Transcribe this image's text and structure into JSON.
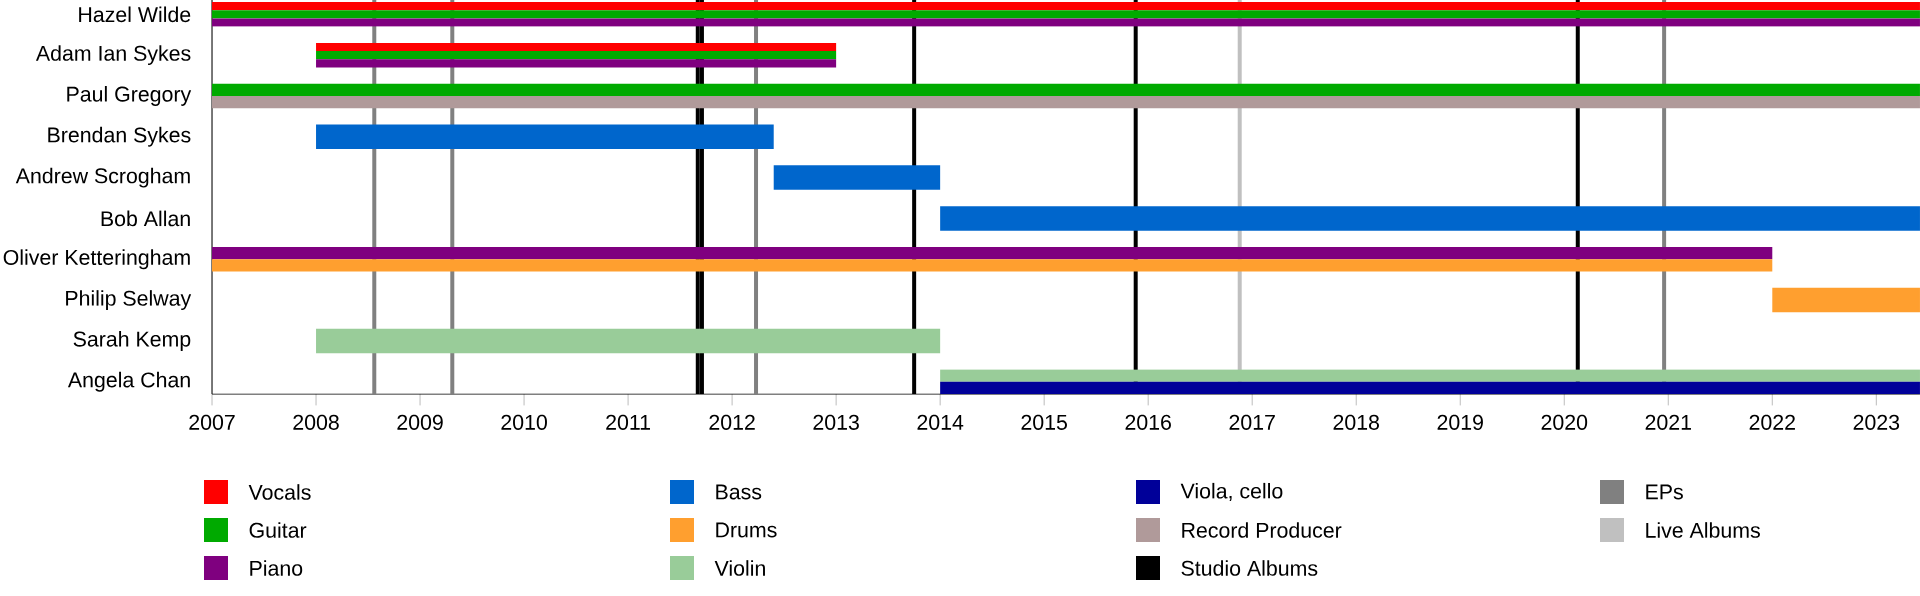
{
  "chart_data": {
    "type": "bar",
    "orientation": "horizontal",
    "categories": [
      "Hazel Wilde",
      "Adam Ian Sykes",
      "Paul Gregory",
      "Brendan Sykes",
      "Andrew Scrogham",
      "Bob Allan",
      "Oliver Ketteringham",
      "Philip Selway",
      "Sarah Kemp",
      "Angela Chan"
    ],
    "series": [
      {
        "name": "Vocals",
        "color": "#ff0000",
        "base": [
          2007,
          2008,
          null,
          null,
          null,
          null,
          null,
          null,
          null,
          null
        ],
        "values": [
          16.42,
          5.0,
          null,
          null,
          null,
          null,
          null,
          null,
          null,
          null
        ]
      },
      {
        "name": "Guitar",
        "color": "#00aa00",
        "base": [
          2007,
          2008,
          2007,
          null,
          null,
          null,
          null,
          null,
          null,
          null
        ],
        "values": [
          16.42,
          5.0,
          16.42,
          null,
          null,
          null,
          null,
          null,
          null,
          null
        ]
      },
      {
        "name": "Piano",
        "color": "#7f007f",
        "base": [
          2007,
          2008,
          null,
          null,
          null,
          null,
          2007,
          null,
          null,
          null
        ],
        "values": [
          16.42,
          5.0,
          null,
          null,
          null,
          null,
          15.0,
          null,
          null,
          null
        ]
      },
      {
        "name": "Bass",
        "color": "#0066cc",
        "base": [
          null,
          null,
          null,
          2008,
          2012.4,
          2014,
          null,
          null,
          null,
          null
        ],
        "values": [
          null,
          null,
          null,
          4.4,
          1.6,
          9.42,
          null,
          null,
          null,
          null
        ]
      },
      {
        "name": "Drums",
        "color": "#ff9f2f",
        "base": [
          null,
          null,
          null,
          null,
          null,
          null,
          2007,
          2022,
          null,
          null
        ],
        "values": [
          null,
          null,
          null,
          null,
          null,
          null,
          15.0,
          1.42,
          null,
          null
        ]
      },
      {
        "name": "Violin",
        "color": "#99cc99",
        "base": [
          null,
          null,
          null,
          null,
          null,
          null,
          null,
          null,
          2008,
          2014
        ],
        "values": [
          null,
          null,
          null,
          null,
          null,
          null,
          null,
          null,
          6.0,
          9.42
        ]
      },
      {
        "name": "Viola, cello",
        "color": "#000099",
        "base": [
          null,
          null,
          null,
          null,
          null,
          null,
          null,
          null,
          null,
          2014
        ],
        "values": [
          null,
          null,
          null,
          null,
          null,
          null,
          null,
          null,
          null,
          9.42
        ]
      },
      {
        "name": "Record Producer",
        "color": "#b09a9a",
        "base": [
          null,
          null,
          2007,
          null,
          null,
          null,
          null,
          null,
          null,
          null
        ],
        "values": [
          null,
          null,
          16.42,
          null,
          null,
          null,
          null,
          null,
          null,
          null
        ]
      }
    ],
    "ref_lines": [
      {
        "axis": "x",
        "value": 2011.67,
        "label": "Studio Albums",
        "color": "#000000"
      },
      {
        "axis": "x",
        "value": 2011.71,
        "color": "#000000"
      },
      {
        "axis": "x",
        "value": 2013.75,
        "color": "#000000"
      },
      {
        "axis": "x",
        "value": 2015.88,
        "color": "#000000"
      },
      {
        "axis": "x",
        "value": 2020.13,
        "color": "#000000"
      },
      {
        "axis": "x",
        "value": 2008.56,
        "label": "EPs",
        "color": "#808080"
      },
      {
        "axis": "x",
        "value": 2009.31,
        "color": "#808080"
      },
      {
        "axis": "x",
        "value": 2012.23,
        "color": "#808080"
      },
      {
        "axis": "x",
        "value": 2020.96,
        "color": "#808080"
      },
      {
        "axis": "x",
        "value": 2016.88,
        "label": "Live Albums",
        "color": "#c0c0c0"
      }
    ],
    "xlim": [
      2007,
      2023.42
    ],
    "xticks": [
      2007,
      2008,
      2009,
      2010,
      2011,
      2012,
      2013,
      2014,
      2015,
      2016,
      2017,
      2018,
      2019,
      2020,
      2021,
      2022,
      2023
    ],
    "legend": "bottom"
  }
}
